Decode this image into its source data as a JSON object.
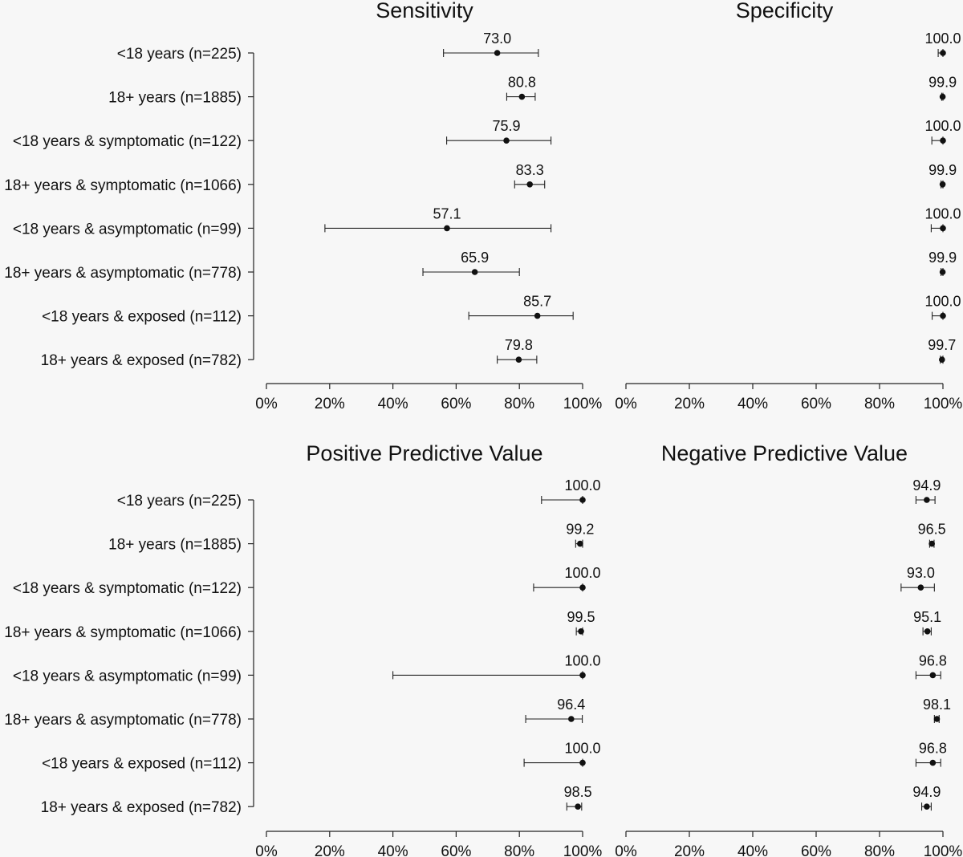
{
  "chart_data": [
    {
      "type": "scatter",
      "title": "Sensitivity",
      "categories": [
        "<18 years (n=225)",
        "18+ years (n=1885)",
        "<18 years & symptomatic (n=122)",
        "18+ years & symptomatic (n=1066)",
        "<18 years & asymptomatic (n=99)",
        "18+ years & asymptomatic (n=778)",
        "<18 years & exposed (n=112)",
        "18+ years & exposed (n=782)"
      ],
      "values": [
        73.0,
        80.8,
        75.9,
        83.3,
        57.1,
        65.9,
        85.7,
        79.8
      ],
      "value_labels": [
        "73.0",
        "80.8",
        "75.9",
        "83.3",
        "57.1",
        "65.9",
        "85.7",
        "79.8"
      ],
      "ci_lower": [
        56,
        76,
        57,
        78.5,
        18.5,
        49.5,
        64,
        73
      ],
      "ci_upper": [
        86,
        85,
        90,
        88,
        90,
        80,
        97,
        85.5
      ],
      "x_ticks": [
        "0%",
        "20%",
        "40%",
        "60%",
        "80%",
        "100%"
      ],
      "xlim": [
        0,
        100
      ]
    },
    {
      "type": "scatter",
      "title": "Specificity",
      "categories": [
        "<18 years (n=225)",
        "18+ years (n=1885)",
        "<18 years & symptomatic (n=122)",
        "18+ years & symptomatic (n=1066)",
        "<18 years & asymptomatic (n=99)",
        "18+ years & asymptomatic (n=778)",
        "<18 years & exposed (n=112)",
        "18+ years & exposed (n=782)"
      ],
      "values": [
        100.0,
        99.9,
        100.0,
        99.9,
        100.0,
        99.9,
        100.0,
        99.7
      ],
      "value_labels": [
        "100.0",
        "99.9",
        "100.0",
        "99.9",
        "100.0",
        "99.9",
        "100.0",
        "99.7"
      ],
      "ci_lower": [
        98.5,
        99.6,
        96.5,
        99.4,
        96.3,
        99.4,
        96.6,
        99.2
      ],
      "ci_upper": [
        100,
        100,
        100,
        100,
        100,
        100,
        100,
        100
      ],
      "x_ticks": [
        "0%",
        "20%",
        "40%",
        "60%",
        "80%",
        "100%"
      ],
      "xlim": [
        0,
        100
      ]
    },
    {
      "type": "scatter",
      "title": "Positive Predictive Value",
      "categories": [
        "<18 years (n=225)",
        "18+ years (n=1885)",
        "<18 years & symptomatic (n=122)",
        "18+ years & symptomatic (n=1066)",
        "<18 years & asymptomatic (n=99)",
        "18+ years & asymptomatic (n=778)",
        "<18 years & exposed (n=112)",
        "18+ years & exposed (n=782)"
      ],
      "values": [
        100.0,
        99.2,
        100.0,
        99.5,
        100.0,
        96.4,
        100.0,
        98.5
      ],
      "value_labels": [
        "100.0",
        "99.2",
        "100.0",
        "99.5",
        "100.0",
        "96.4",
        "100.0",
        "98.5"
      ],
      "ci_lower": [
        87,
        97.8,
        84.5,
        98,
        40,
        82,
        81.5,
        95
      ],
      "ci_upper": [
        100,
        100,
        100,
        100,
        100,
        99.9,
        100,
        99.7
      ],
      "x_ticks": [
        "0%",
        "20%",
        "40%",
        "60%",
        "80%",
        "100%"
      ],
      "xlim": [
        0,
        100
      ]
    },
    {
      "type": "scatter",
      "title": "Negative Predictive Value",
      "categories": [
        "<18 years (n=225)",
        "18+ years (n=1885)",
        "<18 years & symptomatic (n=122)",
        "18+ years & symptomatic (n=1066)",
        "<18 years & asymptomatic (n=99)",
        "18+ years & asymptomatic (n=778)",
        "<18 years & exposed (n=112)",
        "18+ years & exposed (n=782)"
      ],
      "values": [
        94.9,
        96.5,
        93.0,
        95.1,
        96.8,
        98.1,
        96.8,
        94.9
      ],
      "value_labels": [
        "94.9",
        "96.5",
        "93.0",
        "95.1",
        "96.8",
        "98.1",
        "96.8",
        "94.9"
      ],
      "ci_lower": [
        91.5,
        95.8,
        86.8,
        93.7,
        91.5,
        97.3,
        91.5,
        93.3
      ],
      "ci_upper": [
        97.5,
        97.2,
        97.3,
        96.3,
        99.3,
        98.8,
        99.3,
        96.3
      ],
      "x_ticks": [
        "0%",
        "20%",
        "40%",
        "60%",
        "80%",
        "100%"
      ],
      "xlim": [
        0,
        100
      ]
    }
  ]
}
